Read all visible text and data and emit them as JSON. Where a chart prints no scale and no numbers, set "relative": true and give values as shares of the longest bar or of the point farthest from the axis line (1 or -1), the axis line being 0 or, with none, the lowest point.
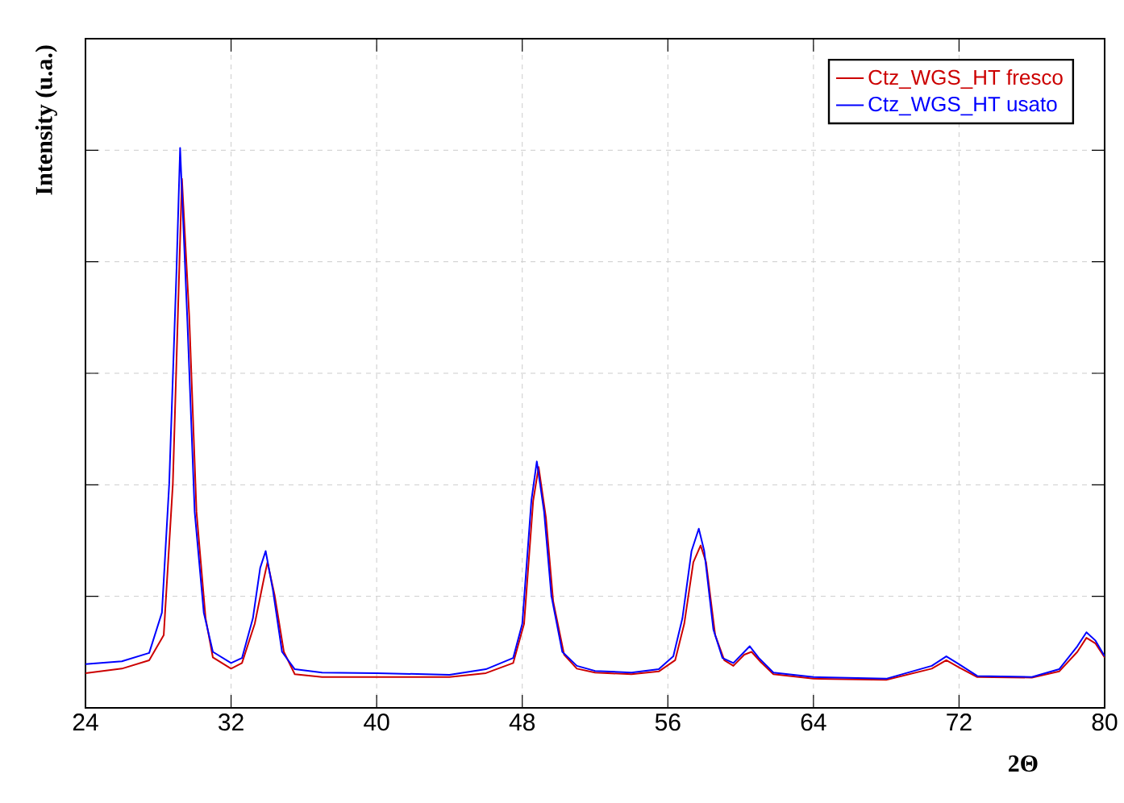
{
  "chart_data": {
    "type": "line",
    "xlabel": "2Θ",
    "ylabel": "Intensity (u.a.)",
    "relative": true,
    "xlim": [
      24,
      80
    ],
    "xticks": [
      24,
      32,
      40,
      48,
      56,
      64,
      72,
      80
    ],
    "grid": true,
    "legend": "top right",
    "line_style": "solid",
    "marker": "none",
    "series": [
      {
        "name": "Ctz_WGS_HT fresco",
        "color": "#cc0000",
        "x": [
          24,
          26,
          27.5,
          28.3,
          28.8,
          29.3,
          29.7,
          30.1,
          30.6,
          31,
          32,
          32.6,
          33.3,
          33.8,
          34.0,
          34.4,
          34.9,
          35.5,
          37,
          40,
          44,
          46,
          47.5,
          48.1,
          48.6,
          48.9,
          49.3,
          49.7,
          50.3,
          51,
          52,
          54,
          55.5,
          56.4,
          56.9,
          57.4,
          57.8,
          58.1,
          58.6,
          59.1,
          59.6,
          60.2,
          60.6,
          61.1,
          61.8,
          64,
          68,
          70.5,
          71.3,
          72.0,
          73,
          76,
          77.5,
          78.5,
          79.0,
          79.5,
          80
        ],
        "values": [
          0.062,
          0.07,
          0.085,
          0.13,
          0.4,
          0.945,
          0.7,
          0.35,
          0.16,
          0.09,
          0.07,
          0.08,
          0.15,
          0.23,
          0.26,
          0.2,
          0.1,
          0.06,
          0.055,
          0.055,
          0.055,
          0.062,
          0.08,
          0.15,
          0.37,
          0.43,
          0.34,
          0.19,
          0.095,
          0.07,
          0.063,
          0.06,
          0.065,
          0.085,
          0.15,
          0.26,
          0.29,
          0.26,
          0.13,
          0.085,
          0.075,
          0.095,
          0.1,
          0.082,
          0.06,
          0.052,
          0.05,
          0.07,
          0.085,
          0.072,
          0.055,
          0.054,
          0.065,
          0.1,
          0.125,
          0.115,
          0.09
        ]
      },
      {
        "name": "Ctz_WGS_HT usato",
        "color": "#0000ff",
        "x": [
          24,
          26,
          27.5,
          28.2,
          28.6,
          29.0,
          29.2,
          29.6,
          30.0,
          30.5,
          31,
          32,
          32.6,
          33.2,
          33.6,
          33.9,
          34.3,
          34.8,
          35.5,
          37,
          40,
          44,
          46,
          47.5,
          48.0,
          48.5,
          48.8,
          49.2,
          49.6,
          50.2,
          51,
          52,
          54,
          55.5,
          56.3,
          56.8,
          57.3,
          57.7,
          58.0,
          58.5,
          59.0,
          59.6,
          60.2,
          60.5,
          61.0,
          61.8,
          64,
          68,
          70.5,
          71.3,
          72.0,
          73,
          76,
          77.5,
          78.5,
          79.0,
          79.5,
          80
        ],
        "values": [
          0.078,
          0.083,
          0.098,
          0.17,
          0.4,
          0.78,
          1.0,
          0.69,
          0.35,
          0.17,
          0.1,
          0.08,
          0.089,
          0.16,
          0.25,
          0.28,
          0.21,
          0.1,
          0.069,
          0.063,
          0.062,
          0.059,
          0.069,
          0.089,
          0.15,
          0.37,
          0.44,
          0.35,
          0.2,
          0.1,
          0.075,
          0.066,
          0.063,
          0.069,
          0.092,
          0.16,
          0.28,
          0.32,
          0.28,
          0.14,
          0.089,
          0.08,
          0.1,
          0.11,
          0.089,
          0.063,
          0.055,
          0.052,
          0.075,
          0.092,
          0.078,
          0.057,
          0.055,
          0.069,
          0.11,
          0.135,
          0.12,
          0.092
        ]
      }
    ]
  }
}
